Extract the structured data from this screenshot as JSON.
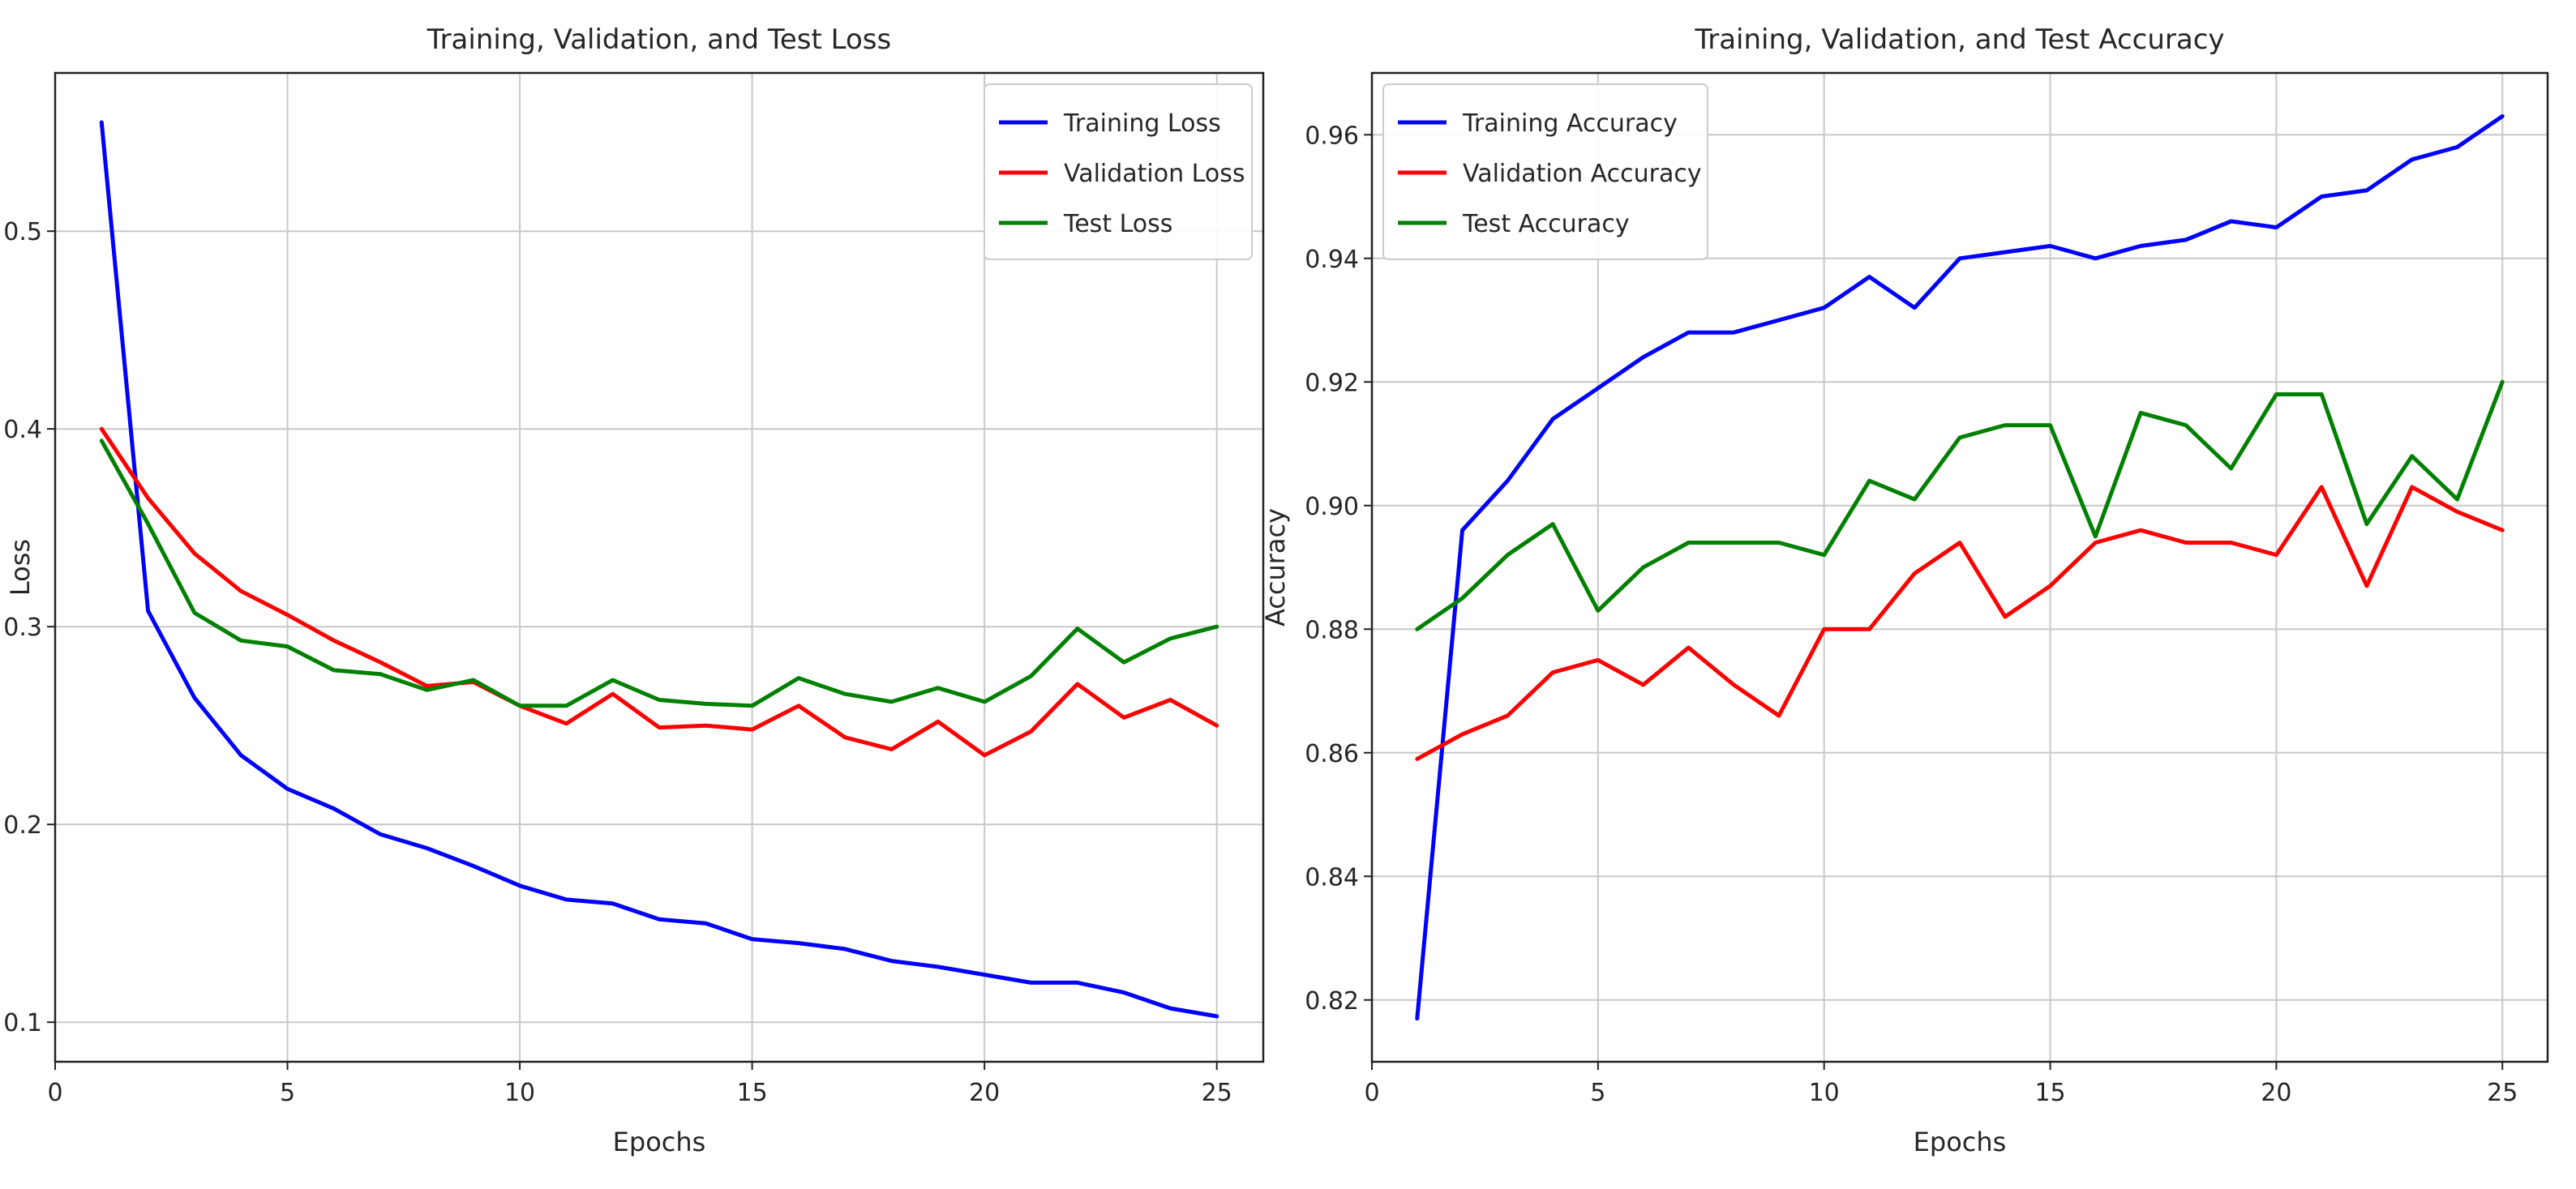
{
  "chart_data": [
    {
      "type": "line",
      "title": "Training, Validation, and Test Loss",
      "xlabel": "Epochs",
      "ylabel": "Loss",
      "xlim": [
        0,
        26
      ],
      "ylim": [
        0.08,
        0.58
      ],
      "xticks": [
        0,
        5,
        10,
        15,
        20,
        25
      ],
      "yticks": [
        0.1,
        0.2,
        0.3,
        0.4,
        0.5
      ],
      "grid": true,
      "legend": "top-right",
      "x": [
        1,
        2,
        3,
        4,
        5,
        6,
        7,
        8,
        9,
        10,
        11,
        12,
        13,
        14,
        15,
        16,
        17,
        18,
        19,
        20,
        21,
        22,
        23,
        24,
        25
      ],
      "series": [
        {
          "name": "Training Loss",
          "color": "#0000ff",
          "values": [
            0.555,
            0.308,
            0.264,
            0.235,
            0.218,
            0.208,
            0.195,
            0.188,
            0.179,
            0.169,
            0.162,
            0.16,
            0.152,
            0.15,
            0.142,
            0.14,
            0.137,
            0.131,
            0.128,
            0.124,
            0.12,
            0.12,
            0.115,
            0.107,
            0.103
          ]
        },
        {
          "name": "Validation Loss",
          "color": "#ff0000",
          "values": [
            0.4,
            0.365,
            0.337,
            0.318,
            0.306,
            0.293,
            0.282,
            0.27,
            0.272,
            0.26,
            0.251,
            0.266,
            0.249,
            0.25,
            0.248,
            0.26,
            0.244,
            0.238,
            0.252,
            0.235,
            0.247,
            0.271,
            0.254,
            0.263,
            0.25
          ]
        },
        {
          "name": "Test Loss",
          "color": "#008000",
          "values": [
            0.394,
            0.352,
            0.307,
            0.293,
            0.29,
            0.278,
            0.276,
            0.268,
            0.273,
            0.26,
            0.26,
            0.273,
            0.263,
            0.261,
            0.26,
            0.274,
            0.266,
            0.262,
            0.269,
            0.262,
            0.275,
            0.299,
            0.282,
            0.294,
            0.3
          ]
        }
      ]
    },
    {
      "type": "line",
      "title": "Training, Validation, and Test Accuracy",
      "xlabel": "Epochs",
      "ylabel": "Accuracy",
      "xlim": [
        0,
        26
      ],
      "ylim": [
        0.81,
        0.97
      ],
      "xticks": [
        0,
        5,
        10,
        15,
        20,
        25
      ],
      "yticks": [
        0.82,
        0.84,
        0.86,
        0.88,
        0.9,
        0.92,
        0.94,
        0.96
      ],
      "grid": true,
      "legend": "top-left",
      "x": [
        1,
        2,
        3,
        4,
        5,
        6,
        7,
        8,
        9,
        10,
        11,
        12,
        13,
        14,
        15,
        16,
        17,
        18,
        19,
        20,
        21,
        22,
        23,
        24,
        25
      ],
      "series": [
        {
          "name": "Training Accuracy",
          "color": "#0000ff",
          "values": [
            0.817,
            0.896,
            0.904,
            0.914,
            0.919,
            0.924,
            0.928,
            0.928,
            0.93,
            0.932,
            0.937,
            0.932,
            0.94,
            0.941,
            0.942,
            0.94,
            0.942,
            0.943,
            0.946,
            0.945,
            0.95,
            0.951,
            0.956,
            0.958,
            0.963
          ]
        },
        {
          "name": "Validation Accuracy",
          "color": "#ff0000",
          "values": [
            0.859,
            0.863,
            0.866,
            0.873,
            0.875,
            0.871,
            0.877,
            0.871,
            0.866,
            0.88,
            0.88,
            0.889,
            0.894,
            0.882,
            0.887,
            0.894,
            0.896,
            0.894,
            0.894,
            0.892,
            0.903,
            0.887,
            0.903,
            0.899,
            0.896
          ]
        },
        {
          "name": "Test Accuracy",
          "color": "#008000",
          "values": [
            0.88,
            0.885,
            0.892,
            0.897,
            0.883,
            0.89,
            0.894,
            0.894,
            0.894,
            0.892,
            0.904,
            0.901,
            0.911,
            0.913,
            0.913,
            0.895,
            0.915,
            0.913,
            0.906,
            0.918,
            0.918,
            0.897,
            0.908,
            0.901,
            0.92
          ]
        }
      ]
    }
  ]
}
